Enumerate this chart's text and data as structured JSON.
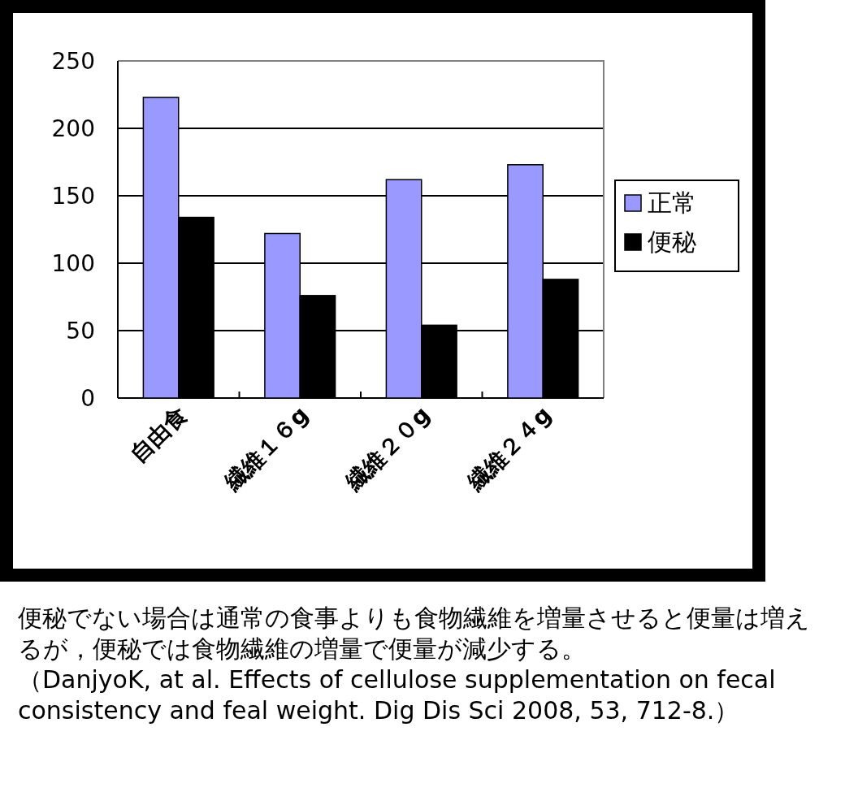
{
  "chart_data": {
    "type": "bar",
    "categories": [
      "自由食",
      "繊維１６g",
      "繊維２０g",
      "繊維２４g"
    ],
    "series": [
      {
        "name": "正常",
        "color": "#9999ff",
        "values": [
          223,
          122,
          162,
          173
        ]
      },
      {
        "name": "便秘",
        "color": "#000000",
        "values": [
          134,
          76,
          54,
          88
        ]
      }
    ],
    "ylim": [
      0,
      250
    ],
    "yticks": [
      0,
      50,
      100,
      150,
      200,
      250
    ],
    "grid": "y",
    "legend": "right",
    "annotations": [
      "便秘でない場合は通常の食事よりも食物繊維を増量させると便量は増えるが，便秘では食物繊維の増量で便量が減少する。",
      "（DanjyoK, at al. Effects of cellulose supplementation on fecal consistency and feal weight. Dig Dis Sci 2008, 53, 712-8.）"
    ]
  }
}
